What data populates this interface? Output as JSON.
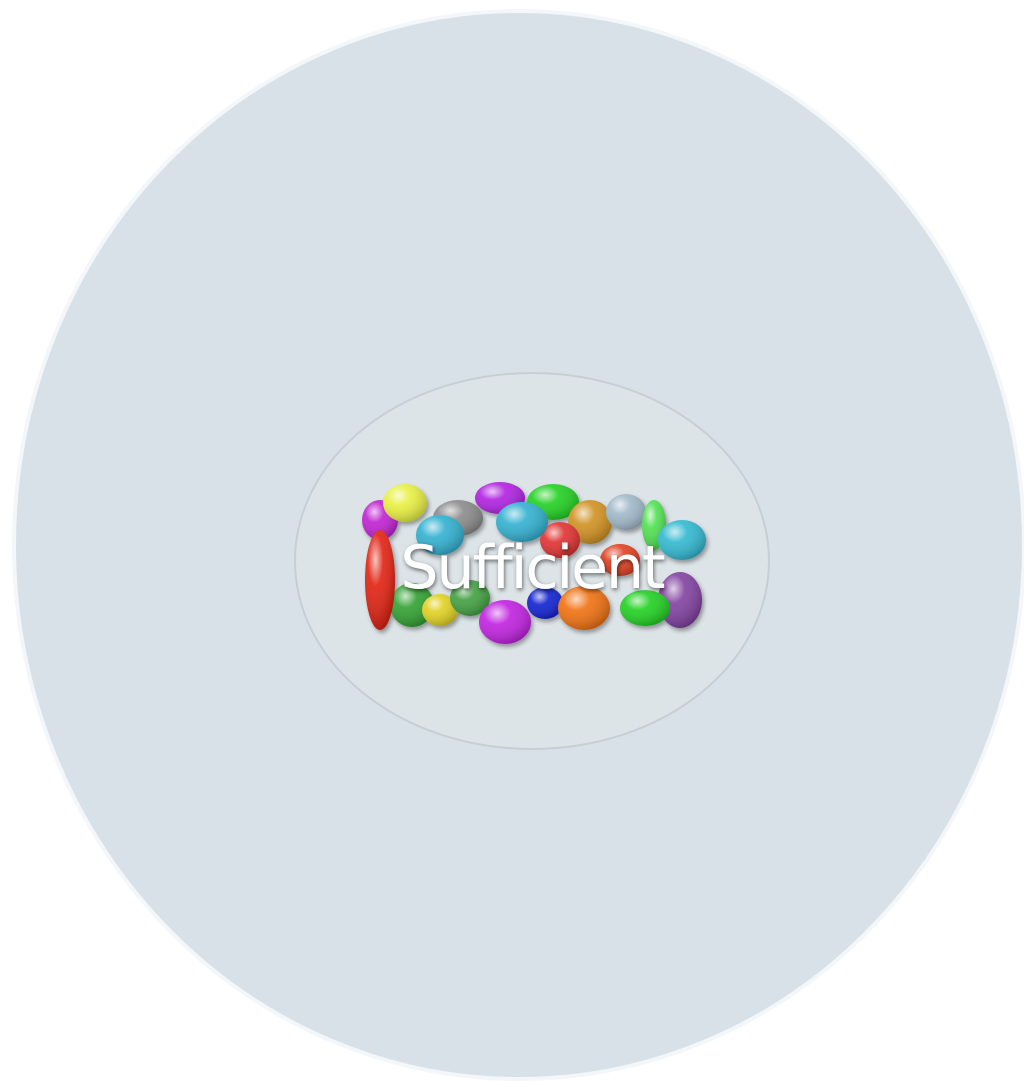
{
  "label": "Sufficient"
}
